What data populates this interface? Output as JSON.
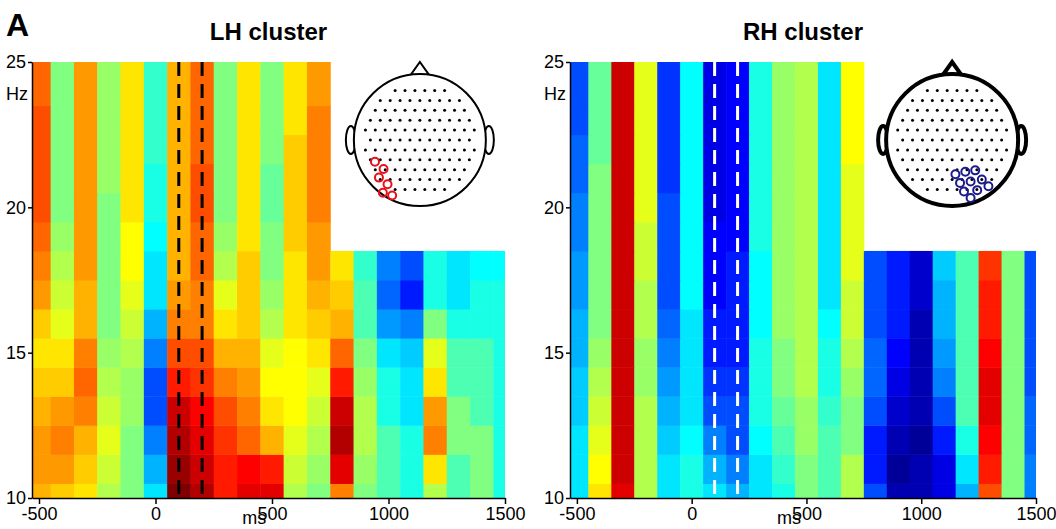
{
  "panel_label": "A",
  "chart_data": [
    {
      "type": "heatmap",
      "title": "LH cluster",
      "x_label": "ms",
      "y_label": "Hz",
      "x": [
        -500,
        -400,
        -300,
        -200,
        -100,
        0,
        100,
        200,
        300,
        400,
        500,
        600,
        700,
        800,
        900,
        1000,
        1100,
        1200,
        1300,
        1400,
        1500
      ],
      "y": [
        10,
        11,
        12,
        13,
        14,
        15,
        16,
        17,
        18,
        19,
        20,
        21,
        22,
        23,
        24,
        25
      ],
      "xlim": [
        -530,
        1500
      ],
      "ylim": [
        10,
        25
      ],
      "xticks": [
        -500,
        0,
        500,
        1000,
        1500
      ],
      "yticks": [
        10,
        15,
        20,
        25
      ],
      "color_range": [
        -1,
        1
      ],
      "vlines": [
        100,
        200
      ],
      "cells": [
        [
          0.4,
          0.35,
          0.3,
          0.1,
          0,
          -0.3,
          1.0,
          0.9,
          0.7,
          0.8,
          0.8,
          0.1,
          0,
          0.5,
          0,
          -0.1,
          -0.2,
          0.1,
          -0.1,
          0,
          -0.2
        ],
        [
          0.45,
          0.45,
          0.35,
          0.15,
          0,
          -0.4,
          0.95,
          0.85,
          0.7,
          0.75,
          0.7,
          0.15,
          0.05,
          0.8,
          0.05,
          -0.1,
          -0.2,
          0.3,
          -0.1,
          0,
          -0.2
        ],
        [
          0.45,
          0.5,
          0.4,
          0.2,
          0,
          -0.5,
          0.9,
          0.8,
          0.65,
          0.55,
          0.4,
          0.2,
          0.1,
          0.9,
          0.1,
          -0.1,
          -0.2,
          0.5,
          0,
          0,
          -0.2
        ],
        [
          0.4,
          0.45,
          0.5,
          0.15,
          0.05,
          -0.6,
          0.85,
          0.75,
          0.6,
          0.5,
          0.3,
          0.25,
          0.15,
          0.85,
          0.1,
          -0.2,
          -0.3,
          0.45,
          0,
          -0.1,
          -0.2
        ],
        [
          0.35,
          0.35,
          0.55,
          0.1,
          0.05,
          -0.6,
          0.7,
          0.65,
          0.5,
          0.45,
          0.25,
          0.25,
          0.2,
          0.7,
          0.05,
          -0.2,
          -0.3,
          0.3,
          -0.1,
          -0.1,
          -0.2
        ],
        [
          0.3,
          0.3,
          0.5,
          0.05,
          0.1,
          -0.5,
          0.6,
          0.6,
          0.4,
          0.4,
          0.2,
          0.25,
          0.3,
          0.55,
          0,
          -0.3,
          -0.35,
          0.2,
          -0.1,
          -0.1,
          -0.2
        ],
        [
          0.35,
          0.2,
          0.4,
          0,
          0.15,
          -0.4,
          0.5,
          0.5,
          0.3,
          0.35,
          0.1,
          0.3,
          0.35,
          0.4,
          -0.1,
          -0.45,
          -0.5,
          0,
          -0.2,
          -0.2,
          -0.2
        ],
        [
          0.45,
          0.15,
          0.4,
          0,
          0.2,
          -0.3,
          0.45,
          0.5,
          0.2,
          0.35,
          0.05,
          0.3,
          0.4,
          0.35,
          -0.1,
          -0.55,
          -0.7,
          -0.2,
          -0.3,
          -0.2,
          -0.2
        ],
        [
          0.5,
          0.1,
          0.45,
          0,
          0.25,
          -0.3,
          0.4,
          0.55,
          0.1,
          0.35,
          0,
          0.3,
          0.45,
          0.3,
          -0.15,
          -0.5,
          -0.6,
          -0.2,
          -0.3,
          -0.25,
          -0.25
        ],
        [
          0.55,
          0.05,
          0.45,
          0,
          0.25,
          -0.25,
          0.4,
          0.55,
          0.05,
          0.3,
          0,
          0.35,
          0.45,
          null,
          null,
          null,
          null,
          null,
          null,
          null,
          null
        ],
        [
          0.6,
          0,
          0.45,
          0,
          0.3,
          -0.2,
          0.4,
          0.6,
          0,
          0.3,
          -0.05,
          0.35,
          0.5,
          null,
          null,
          null,
          null,
          null,
          null,
          null,
          null
        ],
        [
          0.6,
          0,
          0.45,
          0.05,
          0.3,
          -0.2,
          0.4,
          0.6,
          0,
          0.3,
          -0.05,
          0.35,
          0.5,
          null,
          null,
          null,
          null,
          null,
          null,
          null,
          null
        ],
        [
          0.6,
          0,
          0.45,
          0.05,
          0.3,
          -0.15,
          0.4,
          0.55,
          0,
          0.3,
          0,
          0.35,
          0.5,
          null,
          null,
          null,
          null,
          null,
          null,
          null,
          null
        ],
        [
          0.6,
          0,
          0.45,
          0.05,
          0.3,
          -0.15,
          0.4,
          0.55,
          0,
          0.3,
          0,
          0.3,
          0.5,
          null,
          null,
          null,
          null,
          null,
          null,
          null,
          null
        ],
        [
          0.55,
          0,
          0.45,
          0.05,
          0.3,
          -0.15,
          0.4,
          0.55,
          0,
          0.3,
          0,
          0.3,
          0.45,
          null,
          null,
          null,
          null,
          null,
          null,
          null,
          null
        ],
        [
          0.55,
          0,
          0.45,
          0.05,
          0.3,
          -0.15,
          0.4,
          0.55,
          0,
          0.3,
          0,
          0.3,
          0.45,
          null,
          null,
          null,
          null,
          null,
          null,
          null,
          null
        ]
      ]
    },
    {
      "type": "heatmap",
      "title": "RH cluster",
      "x_label": "ms",
      "y_label": "Hz",
      "x": [
        -500,
        -400,
        -300,
        -200,
        -100,
        0,
        100,
        200,
        300,
        400,
        500,
        600,
        700,
        800,
        900,
        1000,
        1100,
        1200,
        1300,
        1400,
        1500
      ],
      "y": [
        10,
        11,
        12,
        13,
        14,
        15,
        16,
        17,
        18,
        19,
        20,
        21,
        22,
        23,
        24,
        25
      ],
      "xlim": [
        -530,
        1500
      ],
      "ylim": [
        10,
        25
      ],
      "xticks": [
        -500,
        0,
        500,
        1000,
        1500
      ],
      "yticks": [
        10,
        15,
        20,
        25
      ],
      "color_range": [
        -1,
        1
      ],
      "vlines": [
        100,
        200
      ],
      "cells": [
        [
          -0.3,
          0.3,
          0.8,
          0.1,
          -0.3,
          -0.2,
          -0.3,
          -0.4,
          -0.3,
          -0.2,
          0,
          -0.1,
          0.1,
          -0.6,
          -0.9,
          -0.9,
          -0.8,
          -0.4,
          0.6,
          0,
          -0.5
        ],
        [
          -0.3,
          0.25,
          0.85,
          0.1,
          -0.3,
          -0.2,
          -0.4,
          -0.5,
          -0.3,
          -0.15,
          0,
          -0.1,
          0.1,
          -0.7,
          -0.95,
          -0.9,
          -0.8,
          -0.3,
          0.7,
          0,
          -0.5
        ],
        [
          -0.3,
          0.2,
          0.85,
          0.1,
          -0.35,
          -0.25,
          -0.5,
          -0.6,
          -0.25,
          -0.1,
          0.05,
          -0.1,
          0,
          -0.7,
          -0.9,
          -0.95,
          -0.7,
          -0.2,
          0.75,
          0,
          -0.55
        ],
        [
          -0.35,
          0.15,
          0.85,
          0.1,
          -0.4,
          -0.3,
          -0.6,
          -0.6,
          -0.2,
          -0.05,
          0.05,
          -0.15,
          0,
          -0.6,
          -0.85,
          -0.9,
          -0.6,
          -0.1,
          0.8,
          0,
          -0.55
        ],
        [
          -0.35,
          0.1,
          0.85,
          0.05,
          -0.45,
          -0.3,
          -0.65,
          -0.65,
          -0.2,
          0,
          0.1,
          -0.2,
          0.05,
          -0.55,
          -0.8,
          -0.9,
          -0.5,
          -0.1,
          0.8,
          0,
          -0.6
        ],
        [
          -0.4,
          0.05,
          0.85,
          0.05,
          -0.5,
          -0.3,
          -0.7,
          -0.7,
          -0.2,
          0,
          0.1,
          -0.2,
          0.1,
          -0.55,
          -0.75,
          -0.9,
          -0.45,
          -0.1,
          0.75,
          0,
          -0.6
        ],
        [
          -0.4,
          0,
          0.85,
          0.1,
          -0.55,
          -0.3,
          -0.7,
          -0.7,
          -0.25,
          0.05,
          0.1,
          -0.25,
          0.15,
          -0.6,
          -0.7,
          -0.9,
          -0.4,
          -0.1,
          0.7,
          0,
          -0.6
        ],
        [
          -0.45,
          0,
          0.85,
          0.1,
          -0.6,
          -0.25,
          -0.75,
          -0.7,
          -0.25,
          0.05,
          0.1,
          -0.3,
          0.15,
          -0.6,
          -0.7,
          -0.85,
          -0.4,
          -0.1,
          0.7,
          0,
          -0.6
        ],
        [
          -0.45,
          0,
          0.85,
          0.15,
          -0.6,
          -0.25,
          -0.75,
          -0.7,
          -0.25,
          0.05,
          0.1,
          -0.3,
          0.2,
          -0.6,
          -0.7,
          -0.85,
          -0.35,
          -0.1,
          0.65,
          0,
          -0.6
        ],
        [
          -0.5,
          0,
          0.85,
          0.15,
          -0.6,
          -0.25,
          -0.75,
          -0.75,
          -0.2,
          0.05,
          0.1,
          -0.3,
          0.2,
          null,
          null,
          null,
          null,
          null,
          null,
          null,
          null
        ],
        [
          -0.5,
          0,
          0.85,
          0.2,
          -0.6,
          -0.25,
          -0.8,
          -0.75,
          -0.2,
          0.05,
          0.1,
          -0.3,
          0.2,
          null,
          null,
          null,
          null,
          null,
          null,
          null,
          null
        ],
        [
          -0.55,
          0,
          0.85,
          0.2,
          -0.65,
          -0.25,
          -0.8,
          -0.75,
          -0.2,
          0.05,
          0.1,
          -0.3,
          0.2,
          null,
          null,
          null,
          null,
          null,
          null,
          null,
          null
        ],
        [
          -0.55,
          -0.05,
          0.85,
          0.2,
          -0.65,
          -0.25,
          -0.8,
          -0.75,
          -0.2,
          0.05,
          0.1,
          -0.3,
          0.25,
          null,
          null,
          null,
          null,
          null,
          null,
          null,
          null
        ],
        [
          -0.6,
          -0.05,
          0.85,
          0.2,
          -0.65,
          -0.25,
          -0.8,
          -0.75,
          -0.2,
          0.05,
          0.1,
          -0.3,
          0.25,
          null,
          null,
          null,
          null,
          null,
          null,
          null,
          null
        ],
        [
          -0.6,
          -0.05,
          0.85,
          0.2,
          -0.65,
          -0.25,
          -0.8,
          -0.75,
          -0.2,
          0.05,
          0.1,
          -0.3,
          0.25,
          null,
          null,
          null,
          null,
          null,
          null,
          null,
          null
        ],
        [
          -0.6,
          -0.05,
          0.85,
          0.2,
          -0.65,
          -0.25,
          -0.8,
          -0.75,
          -0.2,
          0.05,
          0.1,
          -0.3,
          0.25,
          null,
          null,
          null,
          null,
          null,
          null,
          null,
          null
        ]
      ]
    }
  ]
}
